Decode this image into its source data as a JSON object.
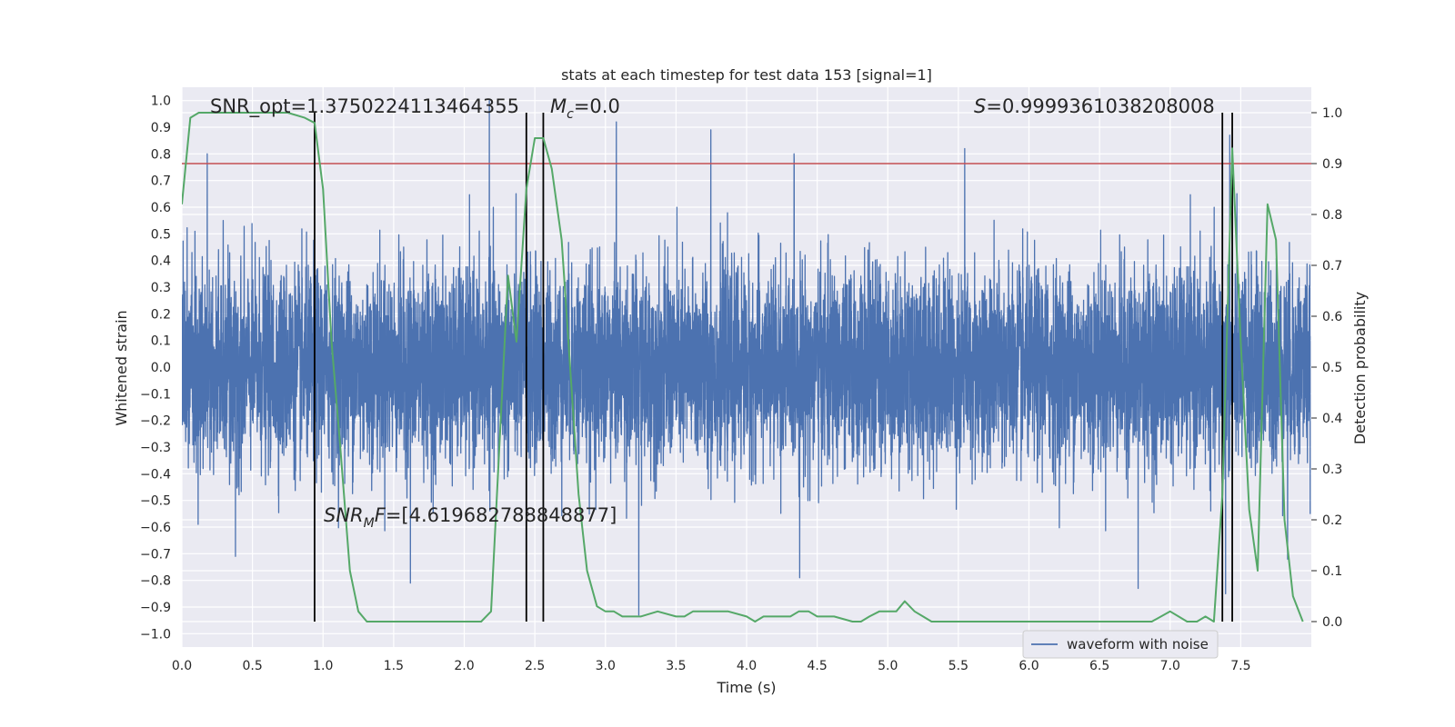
{
  "chart_data": {
    "type": "line",
    "title": "stats at each timestep for test data 153 [signal=1]",
    "xlabel": "Time (s)",
    "ylabel": "Whitened strain",
    "y2label": "Detection probability",
    "xlim": [
      0,
      8
    ],
    "ylim": [
      -1.05,
      1.05
    ],
    "y2lim": [
      -0.05,
      1.05
    ],
    "x_ticks": [
      "0.0",
      "0.5",
      "1.0",
      "1.5",
      "2.0",
      "2.5",
      "3.0",
      "3.5",
      "4.0",
      "4.5",
      "5.0",
      "5.5",
      "6.0",
      "6.5",
      "7.0",
      "7.5"
    ],
    "y_ticks": [
      "1.0",
      "0.9",
      "0.8",
      "0.7",
      "0.6",
      "0.5",
      "0.4",
      "0.3",
      "0.2",
      "0.1",
      "0.0",
      "−0.1",
      "−0.2",
      "−0.3",
      "−0.4",
      "−0.5",
      "−0.6",
      "−0.7",
      "−0.8",
      "−0.9",
      "−1.0"
    ],
    "y2_ticks": [
      "1.0",
      "0.9",
      "0.8",
      "0.7",
      "0.6",
      "0.5",
      "0.4",
      "0.3",
      "0.2",
      "0.1",
      "0.0"
    ],
    "grid": true,
    "legend": {
      "location": "lower-right",
      "entries": [
        "waveform with noise"
      ]
    },
    "annotations": {
      "snr_opt": "SNR_opt=1.3750224113464355",
      "mc": "=0.0",
      "snr_mf": "=[4.619682788848877]",
      "s": "=0.9999361038208008"
    },
    "threshold": {
      "axis": "y2",
      "value": 0.9,
      "color": "#c44e52"
    },
    "vertical_lines_x": [
      0.94,
      2.44,
      2.56,
      7.37,
      7.44
    ],
    "series": [
      {
        "name": "waveform with noise",
        "axis": "y",
        "color": "#4c72b0",
        "kind": "noise",
        "n_points": 8192,
        "core_amplitude": 0.33,
        "peaks": [
          {
            "x": 0.18,
            "y": 0.8
          },
          {
            "x": 2.18,
            "y": 1.0
          },
          {
            "x": 3.08,
            "y": 0.92
          },
          {
            "x": 3.75,
            "y": 0.89
          },
          {
            "x": 4.34,
            "y": 0.8
          },
          {
            "x": 5.55,
            "y": 0.82
          },
          {
            "x": 7.43,
            "y": 0.87
          },
          {
            "x": 0.38,
            "y": -0.71
          },
          {
            "x": 1.62,
            "y": -0.81
          },
          {
            "x": 3.24,
            "y": -0.93
          },
          {
            "x": 4.38,
            "y": -0.79
          },
          {
            "x": 6.78,
            "y": -0.83
          },
          {
            "x": 7.84,
            "y": -0.72
          },
          {
            "x": 7.4,
            "y": -0.85
          }
        ]
      },
      {
        "name": "detection probability",
        "axis": "y2",
        "color": "#55a868",
        "x": [
          0.0,
          0.06,
          0.12,
          0.25,
          0.5,
          0.75,
          0.87,
          0.94,
          1.0,
          1.06,
          1.12,
          1.19,
          1.25,
          1.31,
          1.5,
          1.69,
          1.87,
          2.0,
          2.12,
          2.19,
          2.25,
          2.31,
          2.37,
          2.44,
          2.5,
          2.56,
          2.62,
          2.69,
          2.75,
          2.81,
          2.87,
          2.94,
          3.0,
          3.06,
          3.12,
          3.19,
          3.25,
          3.37,
          3.5,
          3.56,
          3.62,
          3.75,
          3.87,
          4.0,
          4.06,
          4.12,
          4.25,
          4.31,
          4.37,
          4.44,
          4.5,
          4.62,
          4.75,
          4.81,
          4.87,
          4.94,
          5.0,
          5.06,
          5.12,
          5.19,
          5.25,
          5.31,
          5.5,
          5.69,
          5.87,
          6.0,
          6.12,
          6.25,
          6.5,
          6.75,
          6.81,
          6.87,
          7.0,
          7.06,
          7.12,
          7.19,
          7.25,
          7.31,
          7.37,
          7.44,
          7.5,
          7.56,
          7.62,
          7.69,
          7.75,
          7.81,
          7.87,
          7.94
        ],
        "values": [
          0.82,
          0.99,
          1.0,
          1.0,
          1.0,
          1.0,
          0.99,
          0.98,
          0.85,
          0.55,
          0.35,
          0.1,
          0.02,
          0.0,
          0.0,
          0.0,
          0.0,
          0.0,
          0.0,
          0.02,
          0.35,
          0.68,
          0.55,
          0.85,
          0.95,
          0.95,
          0.89,
          0.75,
          0.5,
          0.25,
          0.1,
          0.03,
          0.02,
          0.02,
          0.01,
          0.01,
          0.01,
          0.02,
          0.01,
          0.01,
          0.02,
          0.02,
          0.02,
          0.01,
          0.0,
          0.01,
          0.01,
          0.01,
          0.02,
          0.02,
          0.01,
          0.01,
          0.0,
          0.0,
          0.01,
          0.02,
          0.02,
          0.02,
          0.04,
          0.02,
          0.01,
          0.0,
          0.0,
          0.0,
          0.0,
          0.0,
          0.0,
          0.0,
          0.0,
          0.0,
          0.0,
          0.0,
          0.02,
          0.01,
          0.0,
          0.0,
          0.01,
          0.0,
          0.25,
          0.93,
          0.55,
          0.22,
          0.1,
          0.82,
          0.75,
          0.2,
          0.05,
          0.0
        ]
      }
    ]
  }
}
